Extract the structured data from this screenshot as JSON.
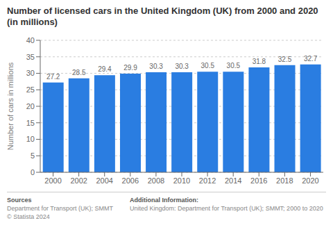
{
  "chart_data": {
    "type": "bar",
    "title": "Number of licensed cars in the United Kingdom (UK) from 2000 and 2020 (in millions)",
    "categories": [
      2000,
      2002,
      2004,
      2006,
      2008,
      2010,
      2012,
      2014,
      2016,
      2018,
      2020
    ],
    "values": [
      27.2,
      28.5,
      29.4,
      29.9,
      30.3,
      30.3,
      30.5,
      30.5,
      31.8,
      32.5,
      32.7
    ],
    "color": "#2a7de1",
    "y_label": "Number of cars in millions",
    "ylim": [
      0,
      40
    ],
    "yticks": [
      0,
      5,
      10,
      15,
      20,
      25,
      30,
      35,
      40
    ],
    "grid": true,
    "data_labels": true,
    "annotations": [
      "Sources",
      "Department for Transport (UK); SMMT\n© Statista 2024",
      "Additional Information:",
      "United Kingdom: Department for Transport (UK); SMMT; 2000 to 2020"
    ]
  }
}
